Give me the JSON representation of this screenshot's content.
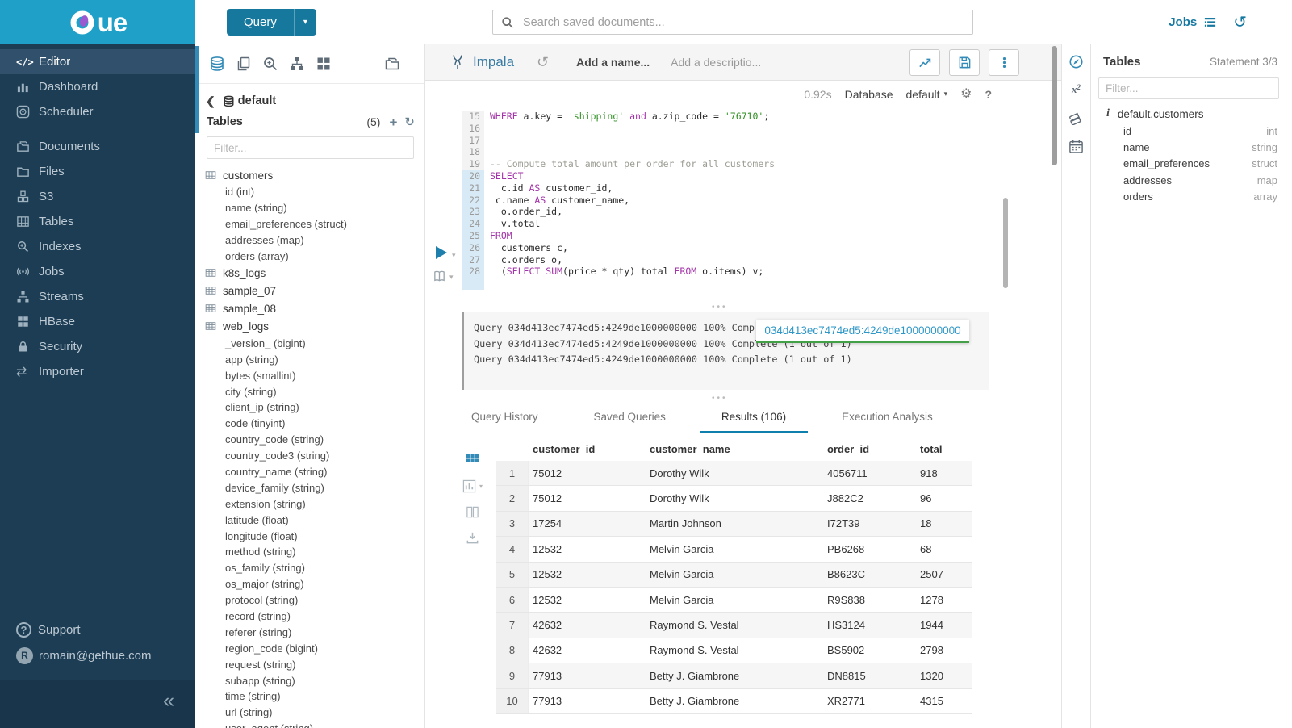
{
  "brand": {
    "logo_text": "ue",
    "topbar_color": "#1FA0C8",
    "accent_blue": "#338BB8",
    "sidebar_bg": "#1C3D54"
  },
  "topbar": {
    "query_label": "Query",
    "search_placeholder": "Search saved documents...",
    "jobs_label": "Jobs",
    "history_glyph": "↺",
    "caret_glyph": "▾"
  },
  "sidebar": {
    "items": [
      {
        "label": "Editor",
        "icon": "code",
        "active": true,
        "gap": false
      },
      {
        "label": "Dashboard",
        "icon": "dashboard",
        "active": false,
        "gap": false
      },
      {
        "label": "Scheduler",
        "icon": "scheduler",
        "active": false,
        "gap": false
      },
      {
        "label": "Documents",
        "icon": "documents",
        "active": false,
        "gap": true
      },
      {
        "label": "Files",
        "icon": "files",
        "active": false,
        "gap": false
      },
      {
        "label": "S3",
        "icon": "s3",
        "active": false,
        "gap": false
      },
      {
        "label": "Tables",
        "icon": "tables",
        "active": false,
        "gap": false
      },
      {
        "label": "Indexes",
        "icon": "indexes",
        "active": false,
        "gap": false
      },
      {
        "label": "Jobs",
        "icon": "jobs",
        "active": false,
        "gap": false
      },
      {
        "label": "Streams",
        "icon": "streams",
        "active": false,
        "gap": false
      },
      {
        "label": "HBase",
        "icon": "hbase",
        "active": false,
        "gap": false
      },
      {
        "label": "Security",
        "icon": "security",
        "active": false,
        "gap": false
      },
      {
        "label": "Importer",
        "icon": "importer",
        "active": false,
        "gap": false
      }
    ],
    "support_label": "Support",
    "user_email": "romain@gethue.com",
    "avatar_letter": "R",
    "collapse_glyph": "«"
  },
  "left_assist": {
    "breadcrumb_back_glyph": "❮",
    "breadcrumb_db": "default",
    "tables_label": "Tables",
    "tables_count": "(5)",
    "add_glyph": "+",
    "refresh_glyph": "↻",
    "filter_placeholder": "Filter...",
    "tables": [
      {
        "name": "customers",
        "columns": [
          "id (int)",
          "name (string)",
          "email_preferences (struct)",
          "addresses (map)",
          "orders (array)"
        ]
      },
      {
        "name": "k8s_logs",
        "columns": []
      },
      {
        "name": "sample_07",
        "columns": []
      },
      {
        "name": "sample_08",
        "columns": []
      },
      {
        "name": "web_logs",
        "columns": [
          "_version_ (bigint)",
          "app (string)",
          "bytes (smallint)",
          "city (string)",
          "client_ip (string)",
          "code (tinyint)",
          "country_code (string)",
          "country_code3 (string)",
          "country_name (string)",
          "device_family (string)",
          "extension (string)",
          "latitude (float)",
          "longitude (float)",
          "method (string)",
          "os_family (string)",
          "os_major (string)",
          "protocol (string)",
          "record (string)",
          "referer (string)",
          "region_code (bigint)",
          "request (string)",
          "subapp (string)",
          "time (string)",
          "url (string)",
          "user_agent (string)"
        ]
      }
    ]
  },
  "editor": {
    "engine": "Impala",
    "name_placeholder": "Add a name...",
    "description_placeholder": "Add a descriptio...",
    "duration": "0.92s",
    "database_label": "Database",
    "database_value": "default",
    "gear_glyph": "⚙",
    "help_glyph": "?",
    "code_lines": [
      {
        "n": "15",
        "active": false,
        "seg": [
          [
            "k",
            "WHERE"
          ],
          [
            "p",
            " a.key = "
          ],
          [
            "s",
            "'shipping'"
          ],
          [
            "p",
            " "
          ],
          [
            "k",
            "and"
          ],
          [
            "p",
            " a.zip_code = "
          ],
          [
            "s",
            "'76710'"
          ],
          [
            "p",
            ";"
          ]
        ]
      },
      {
        "n": "16",
        "active": false,
        "seg": []
      },
      {
        "n": "17",
        "active": false,
        "seg": []
      },
      {
        "n": "18",
        "active": false,
        "seg": []
      },
      {
        "n": "19",
        "active": false,
        "seg": [
          [
            "c",
            "-- Compute total amount per order for all customers"
          ]
        ]
      },
      {
        "n": "20",
        "active": true,
        "seg": [
          [
            "k",
            "SELECT"
          ]
        ]
      },
      {
        "n": "21",
        "active": true,
        "seg": [
          [
            "p",
            "  c.id "
          ],
          [
            "k",
            "AS"
          ],
          [
            "p",
            " customer_id,"
          ]
        ]
      },
      {
        "n": "22",
        "active": true,
        "seg": [
          [
            "p",
            " c.name "
          ],
          [
            "k",
            "AS"
          ],
          [
            "p",
            " customer_name,"
          ]
        ]
      },
      {
        "n": "23",
        "active": true,
        "seg": [
          [
            "p",
            "  o.order_id,"
          ]
        ]
      },
      {
        "n": "24",
        "active": true,
        "seg": [
          [
            "p",
            "  v.total"
          ]
        ]
      },
      {
        "n": "25",
        "active": true,
        "seg": [
          [
            "k",
            "FROM"
          ]
        ]
      },
      {
        "n": "26",
        "active": true,
        "seg": [
          [
            "p",
            "  customers c,"
          ]
        ]
      },
      {
        "n": "27",
        "active": true,
        "seg": [
          [
            "p",
            "  c.orders o,"
          ]
        ]
      },
      {
        "n": "28",
        "active": true,
        "seg": [
          [
            "p",
            "  ("
          ],
          [
            "k",
            "SELECT"
          ],
          [
            "p",
            " "
          ],
          [
            "k",
            "SUM"
          ],
          [
            "p",
            "(price * qty) total "
          ],
          [
            "k",
            "FROM"
          ],
          [
            "p",
            " o.items) v;"
          ]
        ]
      },
      {
        "n": "",
        "active": true,
        "seg": []
      }
    ]
  },
  "logs": {
    "lines": [
      "Query 034d413ec7474ed5:4249de1000000000 100% Complete (1 out of 1)",
      "Query 034d413ec7474ed5:4249de1000000000 100% Complete (1 out of 1)",
      "Query 034d413ec7474ed5:4249de1000000000 100% Complete (1 out of 1)"
    ],
    "popup_text": "034d413ec7474ed5:4249de1000000000",
    "progress_color": "#43A047"
  },
  "tabs": {
    "items": [
      "Query History",
      "Saved Queries",
      "Results (106)",
      "Execution Analysis"
    ],
    "active_index": 2
  },
  "results": {
    "columns": [
      "customer_id",
      "customer_name",
      "order_id",
      "total"
    ],
    "rows": [
      [
        "1",
        "75012",
        "Dorothy Wilk",
        "4056711",
        "918"
      ],
      [
        "2",
        "75012",
        "Dorothy Wilk",
        "J882C2",
        "96"
      ],
      [
        "3",
        "17254",
        "Martin Johnson",
        "I72T39",
        "18"
      ],
      [
        "4",
        "12532",
        "Melvin Garcia",
        "PB6268",
        "68"
      ],
      [
        "5",
        "12532",
        "Melvin Garcia",
        "B8623C",
        "2507"
      ],
      [
        "6",
        "12532",
        "Melvin Garcia",
        "R9S838",
        "1278"
      ],
      [
        "7",
        "42632",
        "Raymond S. Vestal",
        "HS3124",
        "1944"
      ],
      [
        "8",
        "42632",
        "Raymond S. Vestal",
        "BS5902",
        "2798"
      ],
      [
        "9",
        "77913",
        "Betty J. Giambrone",
        "DN8815",
        "1320"
      ],
      [
        "10",
        "77913",
        "Betty J. Giambrone",
        "XR2771",
        "4315"
      ]
    ]
  },
  "right_assist": {
    "title": "Tables",
    "statement": "Statement 3/3",
    "filter_placeholder": "Filter...",
    "table_name": "default.customers",
    "info_glyph": "i",
    "columns": [
      {
        "name": "id",
        "type": "int"
      },
      {
        "name": "name",
        "type": "string"
      },
      {
        "name": "email_preferences",
        "type": "struct"
      },
      {
        "name": "addresses",
        "type": "map"
      },
      {
        "name": "orders",
        "type": "array"
      }
    ]
  }
}
